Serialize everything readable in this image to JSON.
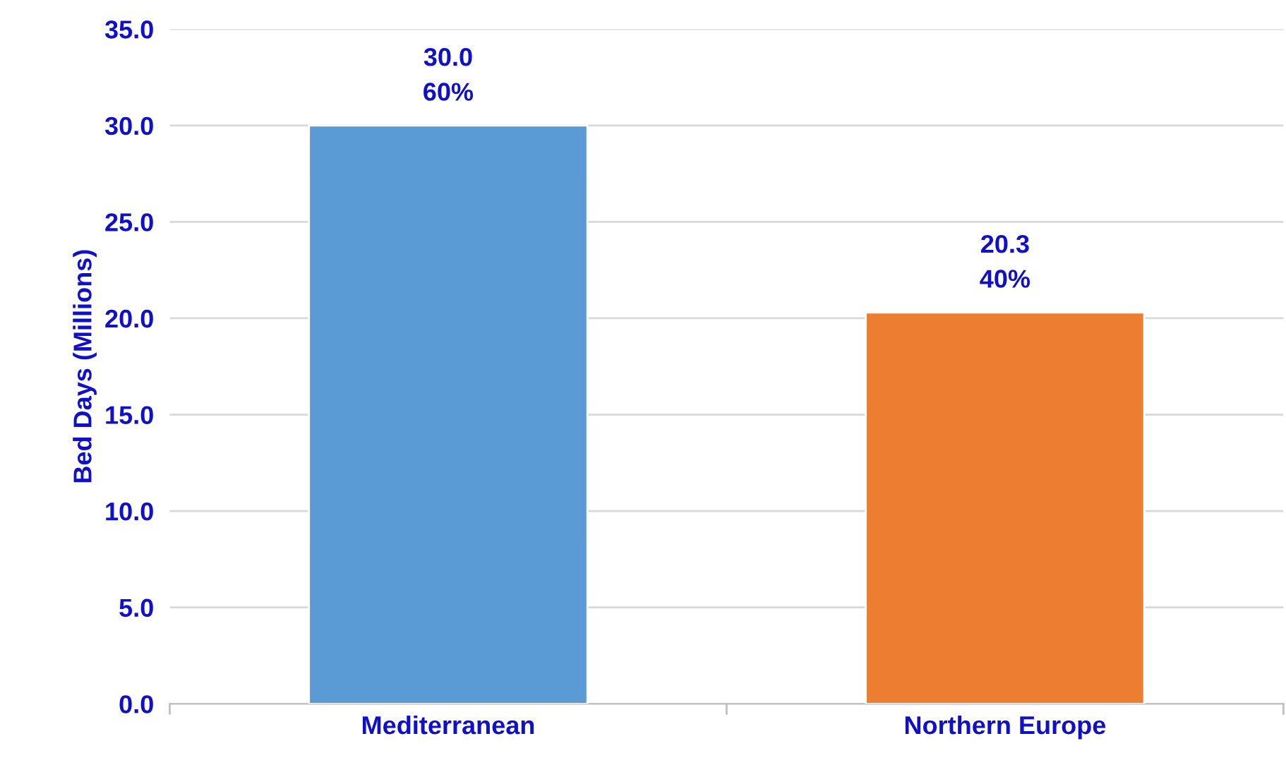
{
  "chart_data": {
    "type": "bar",
    "ylabel": "Bed Days (Millions)",
    "categories": [
      "Mediterranean",
      "Northern Europe"
    ],
    "values": [
      30.0,
      20.3
    ],
    "colors": [
      "#5b9bd5",
      "#ed7d31"
    ],
    "value_labels": [
      "30.0\n60%",
      "20.3\n40%"
    ],
    "ylim": [
      0,
      35
    ],
    "yticks": [
      {
        "value": 0,
        "label": "0.0"
      },
      {
        "value": 5,
        "label": "5.0"
      },
      {
        "value": 10,
        "label": "10.0"
      },
      {
        "value": 15,
        "label": "15.0"
      },
      {
        "value": 20,
        "label": "20.0"
      },
      {
        "value": 25,
        "label": "25.0"
      },
      {
        "value": 30,
        "label": "30.0"
      },
      {
        "value": 35,
        "label": "35.0"
      }
    ],
    "grid": "y"
  }
}
